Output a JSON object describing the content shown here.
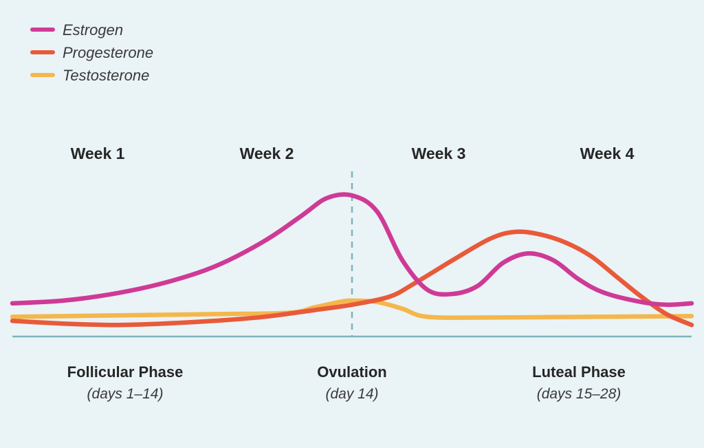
{
  "chart_data": {
    "type": "line",
    "title": "",
    "xlabel": "",
    "ylabel": "",
    "xlim": [
      1,
      28
    ],
    "ylim": [
      0,
      1
    ],
    "grid": false,
    "legend_position": "top-left",
    "weeks": [
      "Week 1",
      "Week 2",
      "Week 3",
      "Week 4"
    ],
    "phases": [
      {
        "name": "Follicular Phase",
        "range": "(days 1–14)"
      },
      {
        "name": "Ovulation",
        "range": "(day 14)"
      },
      {
        "name": "Luteal Phase",
        "range": "(days 15–28)"
      }
    ],
    "ovulation_day": 14.5,
    "series": [
      {
        "name": "Estrogen",
        "color": "#cf3a96",
        "points": [
          [
            1,
            0.2
          ],
          [
            3,
            0.22
          ],
          [
            5,
            0.27
          ],
          [
            7,
            0.35
          ],
          [
            9,
            0.47
          ],
          [
            11,
            0.66
          ],
          [
            12.5,
            0.85
          ],
          [
            13.5,
            0.98
          ],
          [
            14.5,
            1.0
          ],
          [
            15.5,
            0.88
          ],
          [
            16.5,
            0.52
          ],
          [
            17.5,
            0.3
          ],
          [
            18.5,
            0.27
          ],
          [
            19.5,
            0.33
          ],
          [
            20.5,
            0.5
          ],
          [
            21.5,
            0.57
          ],
          [
            22.5,
            0.52
          ],
          [
            23.5,
            0.38
          ],
          [
            24.5,
            0.28
          ],
          [
            26,
            0.21
          ],
          [
            27,
            0.19
          ],
          [
            28,
            0.2
          ]
        ]
      },
      {
        "name": "Progesterone",
        "color": "#e85a3a",
        "points": [
          [
            1,
            0.07
          ],
          [
            3,
            0.05
          ],
          [
            5,
            0.04
          ],
          [
            7,
            0.05
          ],
          [
            9,
            0.07
          ],
          [
            11,
            0.1
          ],
          [
            13,
            0.15
          ],
          [
            14.5,
            0.19
          ],
          [
            16,
            0.25
          ],
          [
            17,
            0.35
          ],
          [
            18.5,
            0.52
          ],
          [
            20,
            0.68
          ],
          [
            21,
            0.73
          ],
          [
            22,
            0.71
          ],
          [
            23,
            0.65
          ],
          [
            24,
            0.55
          ],
          [
            25,
            0.4
          ],
          [
            26,
            0.25
          ],
          [
            27,
            0.12
          ],
          [
            28,
            0.04
          ]
        ]
      },
      {
        "name": "Testosterone",
        "color": "#f4b74c",
        "points": [
          [
            1,
            0.1
          ],
          [
            5,
            0.11
          ],
          [
            9,
            0.12
          ],
          [
            12,
            0.13
          ],
          [
            13,
            0.17
          ],
          [
            14,
            0.21
          ],
          [
            14.5,
            0.22
          ],
          [
            15.5,
            0.21
          ],
          [
            16.5,
            0.16
          ],
          [
            17.5,
            0.1
          ],
          [
            20,
            0.095
          ],
          [
            24,
            0.1
          ],
          [
            28,
            0.105
          ]
        ]
      }
    ]
  }
}
